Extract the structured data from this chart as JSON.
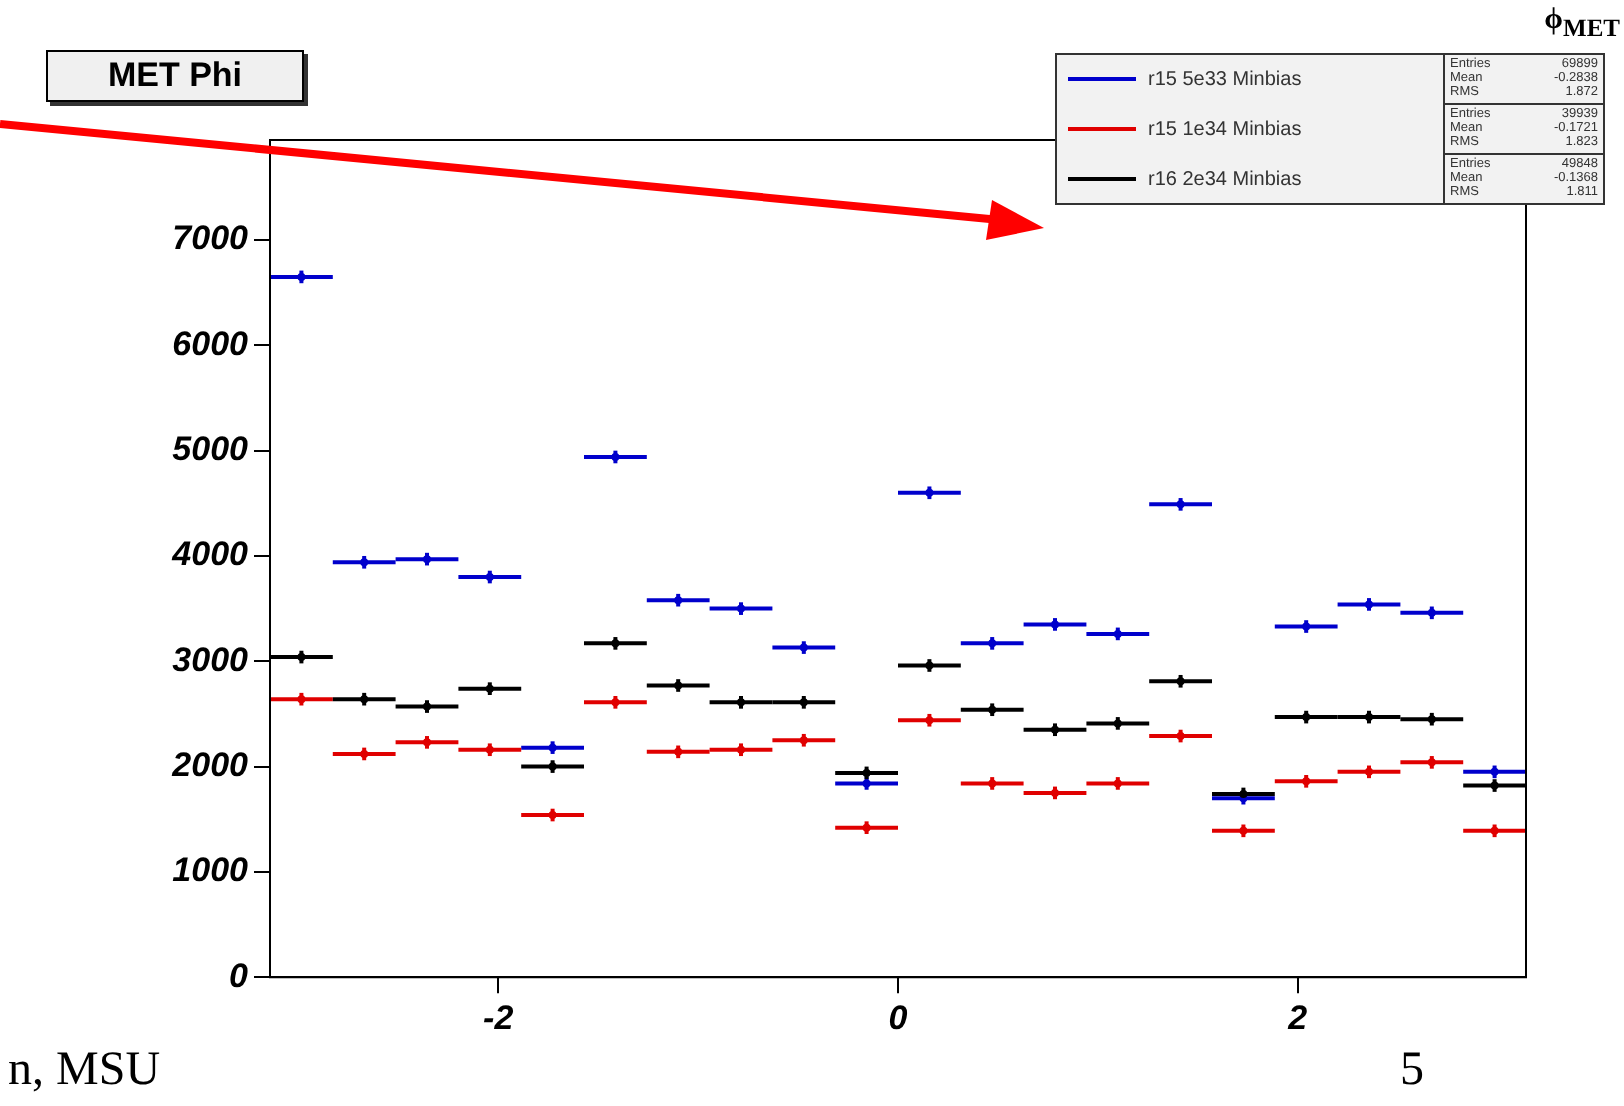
{
  "chart_data": {
    "type": "scatter",
    "title": "MET Phi",
    "xlabel": "ϕ$_{MET}$",
    "x": [
      -2.9845,
      -2.6704,
      -2.3562,
      -2.042,
      -1.7279,
      -1.4137,
      -1.0996,
      -0.7854,
      -0.4712,
      -0.1571,
      0.1571,
      0.4712,
      0.7854,
      1.0996,
      1.4137,
      1.7279,
      2.042,
      2.3562,
      2.6704,
      2.9845
    ],
    "series": [
      {
        "name": "r15 5e33 Minbias",
        "color": "#0000cc",
        "values": [
          6650,
          3940,
          3970,
          3800,
          2180,
          4940,
          3580,
          3500,
          3130,
          1840,
          4600,
          3170,
          3350,
          3260,
          4490,
          1700,
          3330,
          3540,
          3460,
          1950
        ],
        "errors": [
          60,
          60,
          60,
          60,
          60,
          60,
          60,
          60,
          60,
          60,
          60,
          60,
          60,
          60,
          60,
          60,
          60,
          60,
          60,
          60
        ],
        "xerrors": [
          0.1571,
          0.1571,
          0.1571,
          0.1571,
          0.1571,
          0.1571,
          0.1571,
          0.1571,
          0.1571,
          0.1571,
          0.1571,
          0.1571,
          0.1571,
          0.1571,
          0.1571,
          0.1571,
          0.1571,
          0.1571,
          0.1571,
          0.1571
        ]
      },
      {
        "name": "r15 1e34 Minbias",
        "color": "#e00000",
        "values": [
          2640,
          2120,
          2230,
          2160,
          1540,
          2610,
          2140,
          2160,
          2250,
          1420,
          2440,
          1840,
          1750,
          1840,
          2290,
          1390,
          1860,
          1950,
          2040,
          1390
        ],
        "errors": [
          60,
          60,
          60,
          60,
          60,
          60,
          60,
          60,
          60,
          60,
          60,
          60,
          60,
          60,
          60,
          60,
          60,
          60,
          60,
          60
        ],
        "xerrors": [
          0.1571,
          0.1571,
          0.1571,
          0.1571,
          0.1571,
          0.1571,
          0.1571,
          0.1571,
          0.1571,
          0.1571,
          0.1571,
          0.1571,
          0.1571,
          0.1571,
          0.1571,
          0.1571,
          0.1571,
          0.1571,
          0.1571,
          0.1571
        ]
      },
      {
        "name": "r16 2e34 Minbias",
        "color": "#000000",
        "values": [
          3040,
          2640,
          2570,
          2740,
          2000,
          3170,
          2770,
          2610,
          2610,
          1940,
          2960,
          2540,
          2350,
          2410,
          2810,
          1740,
          2470,
          2470,
          2450,
          1820
        ],
        "errors": [
          60,
          60,
          60,
          60,
          60,
          60,
          60,
          60,
          60,
          60,
          60,
          60,
          60,
          60,
          60,
          60,
          60,
          60,
          60,
          60
        ],
        "xerrors": [
          0.1571,
          0.1571,
          0.1571,
          0.1571,
          0.1571,
          0.1571,
          0.1571,
          0.1571,
          0.1571,
          0.1571,
          0.1571,
          0.1571,
          0.1571,
          0.1571,
          0.1571,
          0.1571,
          0.1571,
          0.1571,
          0.1571,
          0.1571
        ]
      }
    ],
    "xlim": [
      -3.1416,
      3.1416
    ],
    "xticks": [
      -2,
      0,
      2
    ],
    "ylim": [
      0,
      7950
    ],
    "yticks": [
      0,
      1000,
      2000,
      3000,
      4000,
      5000,
      6000,
      7000
    ],
    "legend": "top right",
    "marker": "circle",
    "grid": false,
    "annotations": [
      "Entries 69899",
      "Mean -0.2838",
      "RMS 1.872",
      "Entries 39939",
      "Mean -0.1721",
      "RMS 1.823",
      "Entries 49848",
      "Mean -0.1368",
      "RMS 1.811",
      "n, MSU",
      "5"
    ]
  }
}
